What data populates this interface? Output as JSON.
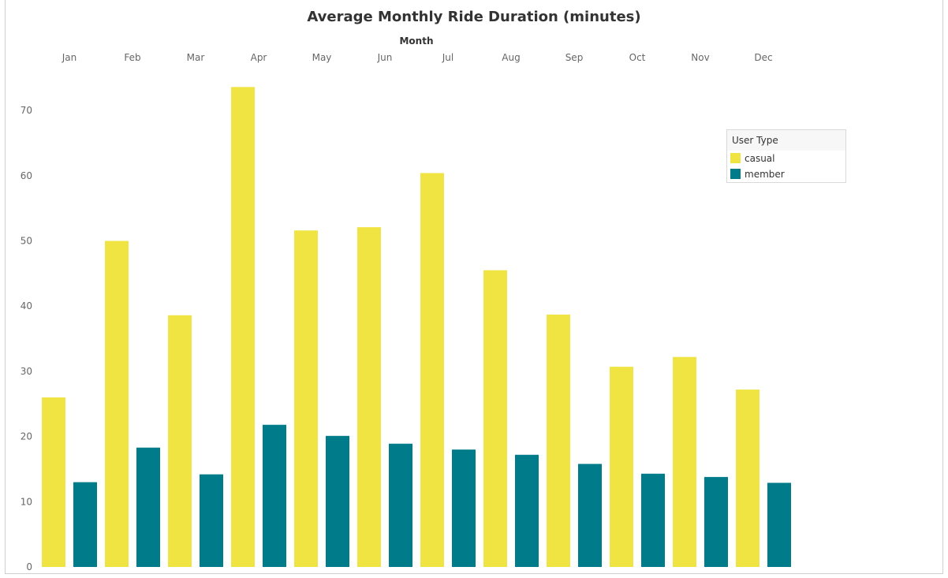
{
  "chart_data": {
    "type": "bar",
    "title": "Average Monthly Ride Duration (minutes)",
    "xlabel": "Month",
    "ylabel": "",
    "categories": [
      "Jan",
      "Feb",
      "Mar",
      "Apr",
      "May",
      "Jun",
      "Jul",
      "Aug",
      "Sep",
      "Oct",
      "Nov",
      "Dec"
    ],
    "series": [
      {
        "name": "casual",
        "color": "#F0E442",
        "values": [
          26.0,
          50.0,
          38.6,
          73.6,
          51.6,
          52.1,
          60.4,
          45.5,
          38.7,
          30.7,
          32.2,
          27.2
        ]
      },
      {
        "name": "member",
        "color": "#007B8A",
        "values": [
          13.0,
          18.3,
          14.2,
          21.8,
          20.1,
          18.9,
          18.0,
          17.2,
          15.8,
          14.3,
          13.8,
          12.9
        ]
      }
    ],
    "ylim": [
      0,
      75
    ],
    "yticks": [
      0,
      10,
      20,
      30,
      40,
      50,
      60,
      70
    ],
    "grid": false,
    "legend_title": "User Type",
    "legend_position": "top-right"
  }
}
